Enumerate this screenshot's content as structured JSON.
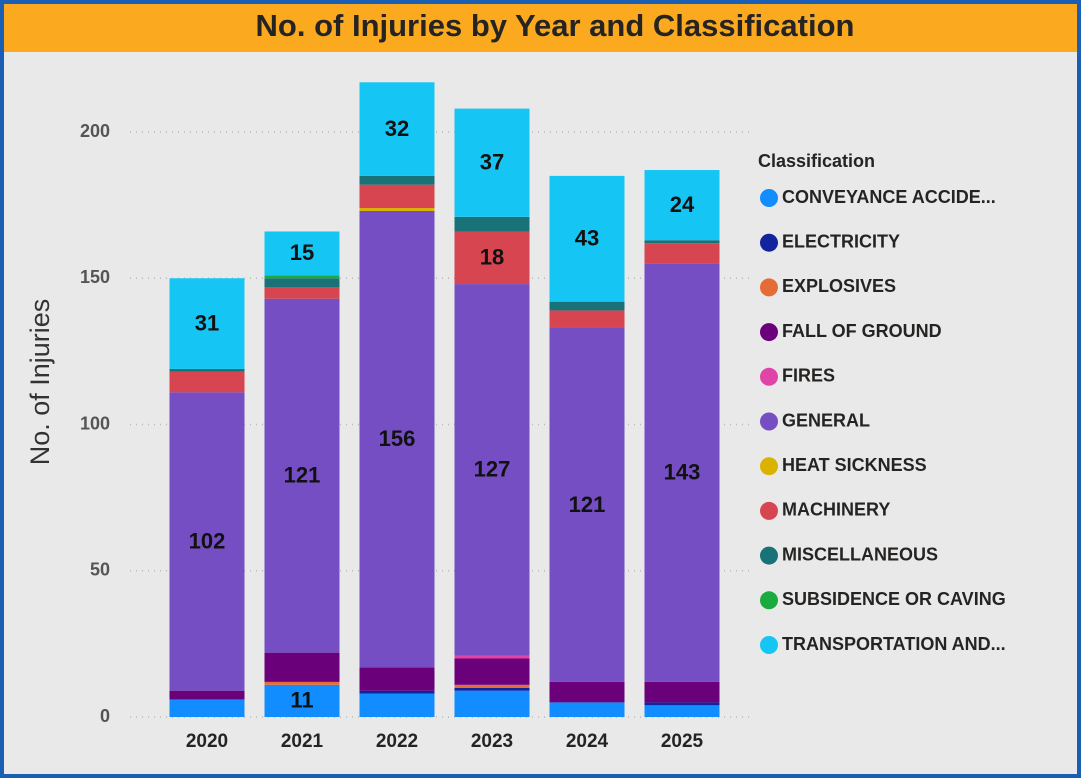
{
  "chart_data": {
    "type": "stacked_bar",
    "title": "No. of Injuries by Year and Classification",
    "y_label": "No. of Injuries",
    "legend_title": "Classification",
    "legend_position": "right",
    "grid": true,
    "categories": [
      "2020",
      "2021",
      "2022",
      "2023",
      "2024",
      "2025"
    ],
    "ylim": [
      0,
      220
    ],
    "yticks": [
      0,
      50,
      100,
      150,
      200
    ],
    "series": [
      {
        "name": "CONVEYANCE ACCIDE...",
        "color": "#118DFF",
        "values": [
          6,
          11,
          8,
          9,
          5,
          4
        ]
      },
      {
        "name": "ELECTRICITY",
        "color": "#12239E",
        "values": [
          0,
          0,
          1,
          1,
          0,
          1
        ]
      },
      {
        "name": "EXPLOSIVES",
        "color": "#E66C37",
        "values": [
          0,
          1,
          0,
          1,
          0,
          0
        ]
      },
      {
        "name": "FALL OF GROUND",
        "color": "#6B007B",
        "values": [
          3,
          10,
          8,
          9,
          7,
          7
        ]
      },
      {
        "name": "FIRES",
        "color": "#E044A7",
        "values": [
          0,
          0,
          0,
          1,
          0,
          0
        ]
      },
      {
        "name": "GENERAL",
        "color": "#744EC2",
        "values": [
          102,
          121,
          156,
          127,
          121,
          143
        ]
      },
      {
        "name": "HEAT SICKNESS",
        "color": "#D9B300",
        "values": [
          0,
          0,
          1,
          0,
          0,
          0
        ]
      },
      {
        "name": "MACHINERY",
        "color": "#D64550",
        "values": [
          7,
          4,
          8,
          18,
          6,
          7
        ]
      },
      {
        "name": "MISCELLANEOUS",
        "color": "#197278",
        "values": [
          1,
          3,
          3,
          5,
          3,
          1
        ]
      },
      {
        "name": "SUBSIDENCE OR CAVING",
        "color": "#1AAB40",
        "values": [
          0,
          1,
          0,
          0,
          0,
          0
        ]
      },
      {
        "name": "TRANSPORTATION AND...",
        "color": "#15C6F4",
        "values": [
          31,
          15,
          32,
          37,
          43,
          24
        ]
      }
    ]
  }
}
